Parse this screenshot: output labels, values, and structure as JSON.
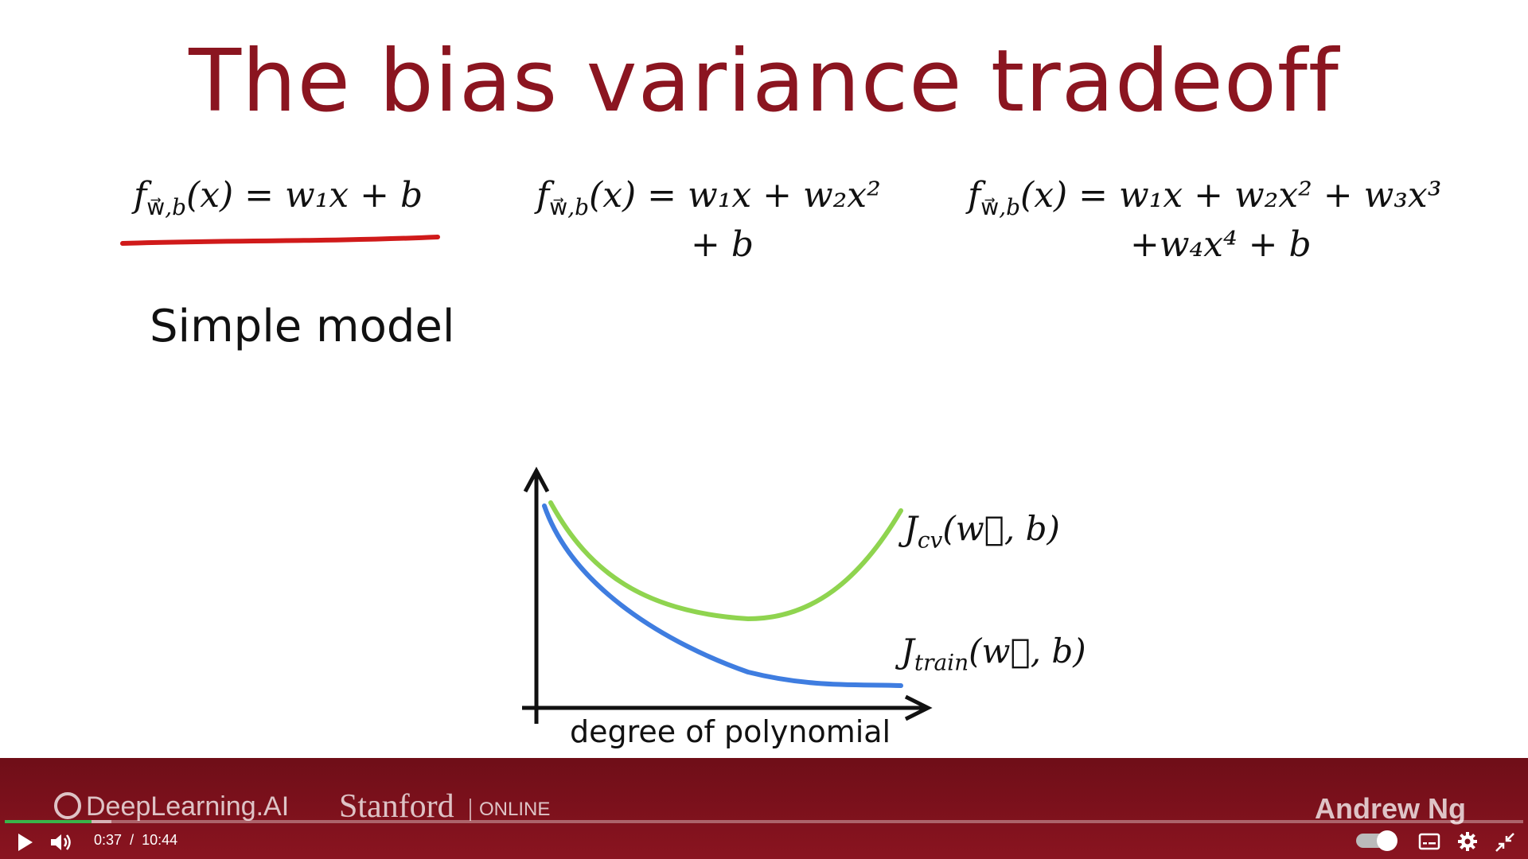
{
  "slide": {
    "title": "The bias variance tradeoff",
    "equations": [
      {
        "line1": "= w₁x + b",
        "line2": ""
      },
      {
        "line1": "= w₁x + w₂x²",
        "line2": "+ b"
      },
      {
        "line1": "= w₁x + w₂x² + w₃x³",
        "line2": "+w₄x⁴ + b"
      }
    ],
    "caption": "Simple model",
    "plot": {
      "xlabel": "degree of polynomial",
      "cv_label": "J",
      "cv_sub": "cv",
      "cv_args": "(w⃗, b)",
      "train_label": "J",
      "train_sub": "train",
      "train_args": "(w⃗, b)",
      "cv_color": "#8fd44f",
      "train_color": "#3f7de0"
    }
  },
  "branding": {
    "org1": "DeepLearning.AI",
    "org2": "Stanford",
    "org2_suffix": "ONLINE",
    "presenter": "Andrew Ng"
  },
  "player": {
    "current_time": "0:37",
    "separator": "/",
    "duration": "10:44",
    "progress_fraction": 0.057
  }
}
